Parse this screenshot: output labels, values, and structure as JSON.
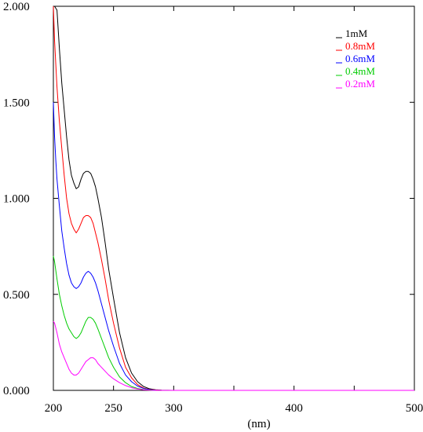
{
  "chart_data": {
    "type": "line",
    "title": "",
    "xlabel": "(nm)",
    "ylabel": "",
    "xlim": [
      200,
      500
    ],
    "ylim": [
      0,
      2.0
    ],
    "x_ticks": [
      200,
      250,
      300,
      350,
      400,
      450,
      500
    ],
    "x_tick_labels": [
      "200",
      "250",
      "300",
      "400",
      "500"
    ],
    "x_tick_label_values": [
      200,
      250,
      300,
      400,
      500
    ],
    "y_ticks": [
      0,
      0.5,
      1.0,
      1.5,
      2.0
    ],
    "y_tick_labels": [
      "0.000",
      "0.500",
      "1.000",
      "1.500",
      "2.000"
    ],
    "grid": false,
    "legend_position": "top-right",
    "series": [
      {
        "name": "1mM",
        "color": "#000000",
        "points": [
          [
            200,
            2.0
          ],
          [
            201,
            2.0
          ],
          [
            203,
            1.98
          ],
          [
            205,
            1.78
          ],
          [
            207,
            1.6
          ],
          [
            209,
            1.46
          ],
          [
            211,
            1.32
          ],
          [
            213,
            1.2
          ],
          [
            215,
            1.12
          ],
          [
            217,
            1.08
          ],
          [
            219,
            1.05
          ],
          [
            221,
            1.06
          ],
          [
            223,
            1.1
          ],
          [
            225,
            1.13
          ],
          [
            227,
            1.14
          ],
          [
            229,
            1.14
          ],
          [
            231,
            1.13
          ],
          [
            233,
            1.1
          ],
          [
            235,
            1.06
          ],
          [
            237,
            1.0
          ],
          [
            240,
            0.9
          ],
          [
            243,
            0.77
          ],
          [
            246,
            0.63
          ],
          [
            250,
            0.48
          ],
          [
            255,
            0.3
          ],
          [
            260,
            0.17
          ],
          [
            265,
            0.09
          ],
          [
            270,
            0.045
          ],
          [
            275,
            0.02
          ],
          [
            280,
            0.008
          ],
          [
            285,
            0.003
          ],
          [
            290,
            0.001
          ],
          [
            300,
            0.0
          ],
          [
            350,
            0.0
          ],
          [
            400,
            0.0
          ],
          [
            500,
            0.0
          ]
        ]
      },
      {
        "name": "0.8mM",
        "color": "#ff0000",
        "points": [
          [
            200,
            2.0
          ],
          [
            201,
            1.82
          ],
          [
            203,
            1.58
          ],
          [
            205,
            1.4
          ],
          [
            207,
            1.26
          ],
          [
            209,
            1.12
          ],
          [
            211,
            1.0
          ],
          [
            213,
            0.92
          ],
          [
            215,
            0.87
          ],
          [
            217,
            0.84
          ],
          [
            219,
            0.82
          ],
          [
            221,
            0.84
          ],
          [
            223,
            0.87
          ],
          [
            225,
            0.9
          ],
          [
            227,
            0.91
          ],
          [
            229,
            0.91
          ],
          [
            231,
            0.9
          ],
          [
            233,
            0.87
          ],
          [
            235,
            0.82
          ],
          [
            237,
            0.77
          ],
          [
            240,
            0.68
          ],
          [
            243,
            0.58
          ],
          [
            246,
            0.47
          ],
          [
            250,
            0.35
          ],
          [
            255,
            0.22
          ],
          [
            260,
            0.12
          ],
          [
            265,
            0.065
          ],
          [
            270,
            0.03
          ],
          [
            275,
            0.012
          ],
          [
            280,
            0.005
          ],
          [
            285,
            0.002
          ],
          [
            290,
            0.0
          ],
          [
            300,
            0.0
          ],
          [
            500,
            0.0
          ]
        ]
      },
      {
        "name": "0.6mM",
        "color": "#0000ff",
        "points": [
          [
            200,
            1.5
          ],
          [
            201,
            1.32
          ],
          [
            202,
            1.2
          ],
          [
            203,
            1.1
          ],
          [
            205,
            0.96
          ],
          [
            207,
            0.83
          ],
          [
            209,
            0.74
          ],
          [
            211,
            0.66
          ],
          [
            213,
            0.6
          ],
          [
            215,
            0.56
          ],
          [
            217,
            0.54
          ],
          [
            219,
            0.53
          ],
          [
            221,
            0.54
          ],
          [
            223,
            0.56
          ],
          [
            225,
            0.59
          ],
          [
            227,
            0.61
          ],
          [
            229,
            0.62
          ],
          [
            231,
            0.61
          ],
          [
            233,
            0.59
          ],
          [
            235,
            0.56
          ],
          [
            237,
            0.52
          ],
          [
            240,
            0.45
          ],
          [
            243,
            0.38
          ],
          [
            246,
            0.31
          ],
          [
            250,
            0.23
          ],
          [
            255,
            0.14
          ],
          [
            260,
            0.08
          ],
          [
            265,
            0.045
          ],
          [
            270,
            0.022
          ],
          [
            275,
            0.01
          ],
          [
            280,
            0.004
          ],
          [
            285,
            0.001
          ],
          [
            290,
            0.0
          ],
          [
            300,
            0.0
          ],
          [
            500,
            0.0
          ]
        ]
      },
      {
        "name": "0.4mM",
        "color": "#00cc00",
        "points": [
          [
            200,
            0.7
          ],
          [
            201,
            0.67
          ],
          [
            203,
            0.58
          ],
          [
            205,
            0.5
          ],
          [
            207,
            0.44
          ],
          [
            209,
            0.39
          ],
          [
            211,
            0.35
          ],
          [
            213,
            0.32
          ],
          [
            215,
            0.3
          ],
          [
            217,
            0.28
          ],
          [
            219,
            0.27
          ],
          [
            221,
            0.28
          ],
          [
            223,
            0.3
          ],
          [
            225,
            0.33
          ],
          [
            227,
            0.36
          ],
          [
            229,
            0.38
          ],
          [
            231,
            0.38
          ],
          [
            233,
            0.37
          ],
          [
            235,
            0.35
          ],
          [
            237,
            0.32
          ],
          [
            240,
            0.27
          ],
          [
            243,
            0.22
          ],
          [
            246,
            0.17
          ],
          [
            250,
            0.12
          ],
          [
            255,
            0.07
          ],
          [
            260,
            0.04
          ],
          [
            265,
            0.02
          ],
          [
            270,
            0.01
          ],
          [
            275,
            0.004
          ],
          [
            280,
            0.002
          ],
          [
            285,
            0.0
          ],
          [
            300,
            0.0
          ],
          [
            500,
            0.0
          ]
        ]
      },
      {
        "name": "0.2mM",
        "color": "#ff00ff",
        "points": [
          [
            200,
            0.36
          ],
          [
            201,
            0.35
          ],
          [
            203,
            0.3
          ],
          [
            205,
            0.24
          ],
          [
            207,
            0.2
          ],
          [
            209,
            0.17
          ],
          [
            211,
            0.14
          ],
          [
            213,
            0.11
          ],
          [
            215,
            0.09
          ],
          [
            217,
            0.08
          ],
          [
            219,
            0.08
          ],
          [
            221,
            0.09
          ],
          [
            223,
            0.11
          ],
          [
            225,
            0.13
          ],
          [
            227,
            0.15
          ],
          [
            229,
            0.16
          ],
          [
            231,
            0.17
          ],
          [
            233,
            0.17
          ],
          [
            235,
            0.16
          ],
          [
            237,
            0.14
          ],
          [
            240,
            0.12
          ],
          [
            243,
            0.1
          ],
          [
            246,
            0.08
          ],
          [
            250,
            0.06
          ],
          [
            255,
            0.04
          ],
          [
            260,
            0.025
          ],
          [
            265,
            0.014
          ],
          [
            270,
            0.007
          ],
          [
            275,
            0.003
          ],
          [
            280,
            0.001
          ],
          [
            285,
            0.0
          ],
          [
            300,
            0.0
          ],
          [
            500,
            0.0
          ]
        ]
      }
    ]
  }
}
